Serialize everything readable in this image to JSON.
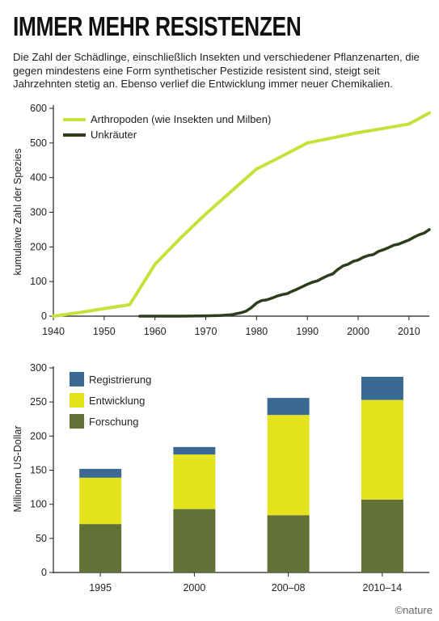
{
  "title": "IMMER MEHR RESISTENZEN",
  "subtitle": "Die Zahl der Schädlinge, einschließlich Insekten und verschiedener Pflanzenarten, die gegen mindestens eine Form synthetischer Pestizide resistent sind, steigt seit Jahrzehnten stetig an. Ebenso verlief die Entwicklung immer neuer Chemikalien.",
  "credit": "©nature",
  "chart_data": [
    {
      "type": "line",
      "ylabel": "kumulative Zahl der Spezies",
      "xlabel": "",
      "xlim": [
        1940,
        2014
      ],
      "ylim": [
        0,
        600
      ],
      "xticks": [
        1940,
        1950,
        1960,
        1970,
        1980,
        1990,
        2000,
        2010
      ],
      "yticks": [
        0,
        100,
        200,
        300,
        400,
        500,
        600
      ],
      "grid": false,
      "legend": "top-left",
      "series": [
        {
          "name": "Arthropoden (wie Insekten und Milben)",
          "color": "#c8e03a",
          "x": [
            1940,
            1945,
            1950,
            1955,
            1960,
            1965,
            1970,
            1975,
            1980,
            1985,
            1990,
            1995,
            2000,
            2005,
            2010,
            2014
          ],
          "y": [
            0,
            10,
            22,
            33,
            150,
            225,
            295,
            360,
            425,
            462,
            500,
            515,
            530,
            542,
            555,
            587
          ]
        },
        {
          "name": "Unkräuter",
          "color": "#2c3d1c",
          "x": [
            1957,
            1965,
            1970,
            1973,
            1975,
            1977,
            1978,
            1979,
            1980,
            1981,
            1982,
            1983,
            1984,
            1985,
            1986,
            1987,
            1988,
            1989,
            1990,
            1991,
            1992,
            1993,
            1994,
            1995,
            1996,
            1997,
            1998,
            1999,
            2000,
            2001,
            2002,
            2003,
            2004,
            2005,
            2006,
            2007,
            2008,
            2009,
            2010,
            2011,
            2012,
            2013,
            2014
          ],
          "y": [
            0,
            0,
            1,
            2,
            4,
            10,
            15,
            25,
            38,
            45,
            47,
            52,
            58,
            62,
            65,
            72,
            78,
            85,
            92,
            98,
            102,
            110,
            117,
            122,
            135,
            145,
            150,
            158,
            162,
            170,
            175,
            178,
            187,
            192,
            198,
            205,
            208,
            214,
            220,
            228,
            235,
            240,
            250
          ]
        }
      ]
    },
    {
      "type": "bar",
      "stacked": true,
      "ylabel": "Millionen US-Dollar",
      "xlabel": "",
      "ylim": [
        0,
        300
      ],
      "yticks": [
        0,
        50,
        100,
        150,
        200,
        250,
        300
      ],
      "grid": false,
      "legend": "top-left",
      "categories": [
        "1995",
        "2000",
        "200–08",
        "2010–14"
      ],
      "series": [
        {
          "name": "Forschung",
          "color": "#627135",
          "values": [
            71,
            93,
            84,
            107
          ]
        },
        {
          "name": "Entwicklung",
          "color": "#e5e31e",
          "values": [
            68,
            80,
            147,
            146
          ]
        },
        {
          "name": "Registrierung",
          "color": "#3a6a94",
          "values": [
            13,
            11,
            25,
            34
          ]
        }
      ],
      "legend_order": [
        "Registrierung",
        "Entwicklung",
        "Forschung"
      ]
    }
  ]
}
